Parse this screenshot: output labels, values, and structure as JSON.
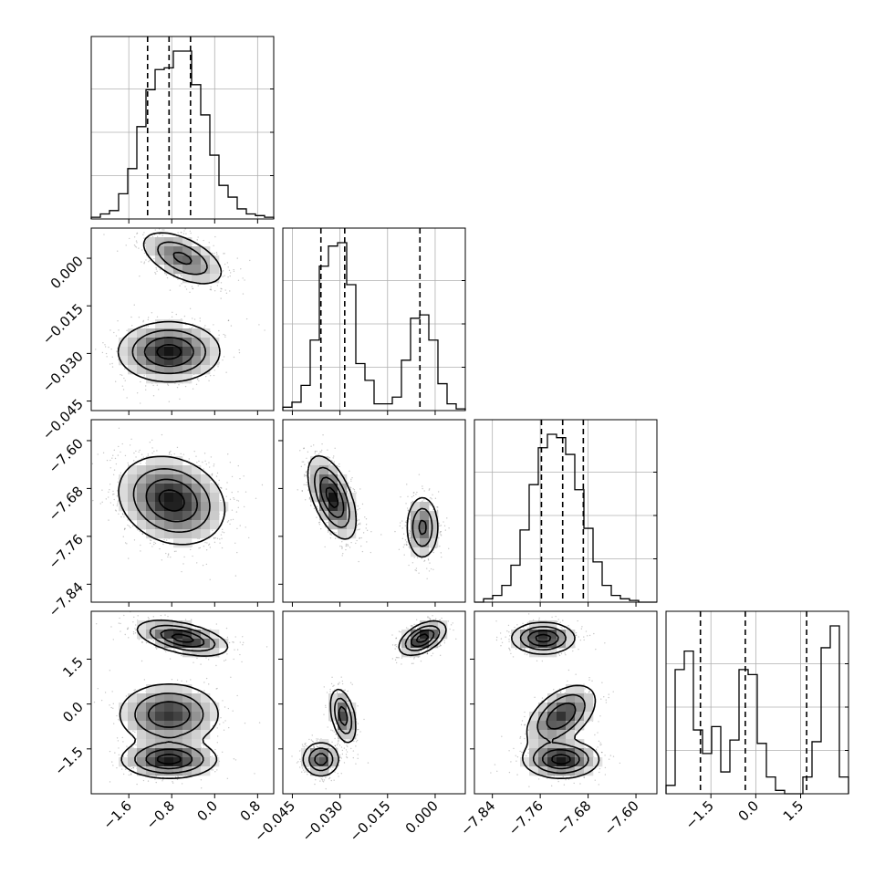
{
  "chart_data": {
    "type": "corner",
    "grid": true,
    "parameters": [
      {
        "range": [
          -2.3,
          1.1
        ],
        "ticks": [
          -1.6,
          -0.8,
          0.0,
          0.8
        ],
        "tick_labels": [
          "−1.6",
          "−0.8",
          "0.0",
          "0.8"
        ],
        "quantiles": [
          -1.25,
          -0.85,
          -0.45
        ]
      },
      {
        "range": [
          -0.048,
          0.0095
        ],
        "ticks": [
          -0.045,
          -0.03,
          -0.015,
          0.0
        ],
        "tick_labels": [
          "−0.045",
          "−0.030",
          "−0.015",
          "0.000"
        ],
        "quantiles": [
          -0.036,
          -0.0285,
          -0.0048
        ]
      },
      {
        "range": [
          -7.87,
          -7.565
        ],
        "ticks": [
          -7.84,
          -7.76,
          -7.68,
          -7.6
        ],
        "tick_labels": [
          "−7.84",
          "−7.76",
          "−7.68",
          "−7.60"
        ],
        "quantiles": [
          -7.758,
          -7.7225,
          -7.688
        ]
      },
      {
        "range": [
          -3.0,
          3.1
        ],
        "ticks": [
          -1.5,
          0.0,
          1.5
        ],
        "tick_labels": [
          "−1.5",
          "0.0",
          "1.5"
        ],
        "quantiles": [
          -1.85,
          -0.35,
          1.7
        ]
      }
    ],
    "histograms": [
      {
        "range": [
          -2.3,
          1.1
        ],
        "values": [
          0.01,
          0.03,
          0.05,
          0.15,
          0.3,
          0.55,
          0.77,
          0.89,
          0.9,
          1.0,
          1.0,
          0.8,
          0.62,
          0.38,
          0.2,
          0.13,
          0.06,
          0.03,
          0.02,
          0.01
        ]
      },
      {
        "range": [
          -0.048,
          0.0095
        ],
        "values": [
          0.02,
          0.05,
          0.15,
          0.42,
          0.86,
          0.98,
          1.0,
          0.75,
          0.28,
          0.18,
          0.04,
          0.04,
          0.08,
          0.3,
          0.55,
          0.57,
          0.42,
          0.16,
          0.04,
          0.01
        ]
      },
      {
        "range": [
          -7.87,
          -7.565
        ],
        "values": [
          0.0,
          0.02,
          0.04,
          0.1,
          0.22,
          0.43,
          0.7,
          0.92,
          1.0,
          0.98,
          0.88,
          0.67,
          0.44,
          0.24,
          0.1,
          0.04,
          0.02,
          0.01,
          0.0,
          0.0
        ]
      },
      {
        "range": [
          -3.0,
          3.1
        ],
        "values": [
          0.05,
          0.74,
          0.85,
          0.38,
          0.24,
          0.4,
          0.13,
          0.32,
          0.74,
          0.71,
          0.3,
          0.1,
          0.02,
          0.0,
          0.0,
          0.1,
          0.31,
          0.87,
          1.0,
          0.1
        ]
      }
    ],
    "pairs": [
      {
        "x": 0,
        "y": 1,
        "modes": [
          {
            "cx": -0.6,
            "cy": 0.0,
            "sx": 0.38,
            "sy": 0.0042,
            "rho": -0.55,
            "w": 0.4
          },
          {
            "cx": -0.85,
            "cy": -0.0295,
            "sx": 0.45,
            "sy": 0.0045,
            "rho": 0.0,
            "w": 0.6
          }
        ]
      },
      {
        "x": 0,
        "y": 2,
        "modes": [
          {
            "cx": -0.8,
            "cy": -7.7,
            "sx": 0.47,
            "sy": 0.035,
            "rho": -0.2,
            "w": 1.0
          }
        ]
      },
      {
        "x": 1,
        "y": 2,
        "modes": [
          {
            "cx": -0.0325,
            "cy": -7.695,
            "sx": 0.0036,
            "sy": 0.033,
            "rho": -0.55,
            "w": 0.6
          },
          {
            "cx": -0.004,
            "cy": -7.745,
            "sx": 0.0025,
            "sy": 0.026,
            "rho": 0.0,
            "w": 0.4
          }
        ]
      },
      {
        "x": 0,
        "y": 3,
        "modes": [
          {
            "cx": -0.6,
            "cy": 2.2,
            "sx": 0.4,
            "sy": 0.28,
            "rho": -0.5,
            "w": 0.35
          },
          {
            "cx": -0.85,
            "cy": -0.35,
            "sx": 0.45,
            "sy": 0.5,
            "rho": 0.0,
            "w": 0.3
          },
          {
            "cx": -0.85,
            "cy": -1.85,
            "sx": 0.42,
            "sy": 0.3,
            "rho": 0.0,
            "w": 0.35
          }
        ]
      },
      {
        "x": 1,
        "y": 3,
        "modes": [
          {
            "cx": -0.004,
            "cy": 2.2,
            "sx": 0.0035,
            "sy": 0.27,
            "rho": 0.5,
            "w": 0.4
          },
          {
            "cx": -0.029,
            "cy": -0.4,
            "sx": 0.002,
            "sy": 0.45,
            "rho": -0.4,
            "w": 0.3
          },
          {
            "cx": -0.036,
            "cy": -1.85,
            "sx": 0.0028,
            "sy": 0.28,
            "rho": 0.0,
            "w": 0.3
          }
        ]
      },
      {
        "x": 2,
        "y": 3,
        "modes": [
          {
            "cx": -7.755,
            "cy": 2.2,
            "sx": 0.025,
            "sy": 0.25,
            "rho": 0.0,
            "w": 0.35
          },
          {
            "cx": -7.725,
            "cy": -0.4,
            "sx": 0.028,
            "sy": 0.5,
            "rho": 0.5,
            "w": 0.3
          },
          {
            "cx": -7.725,
            "cy": -1.85,
            "sx": 0.03,
            "sy": 0.3,
            "rho": 0.0,
            "w": 0.35
          }
        ]
      }
    ]
  }
}
